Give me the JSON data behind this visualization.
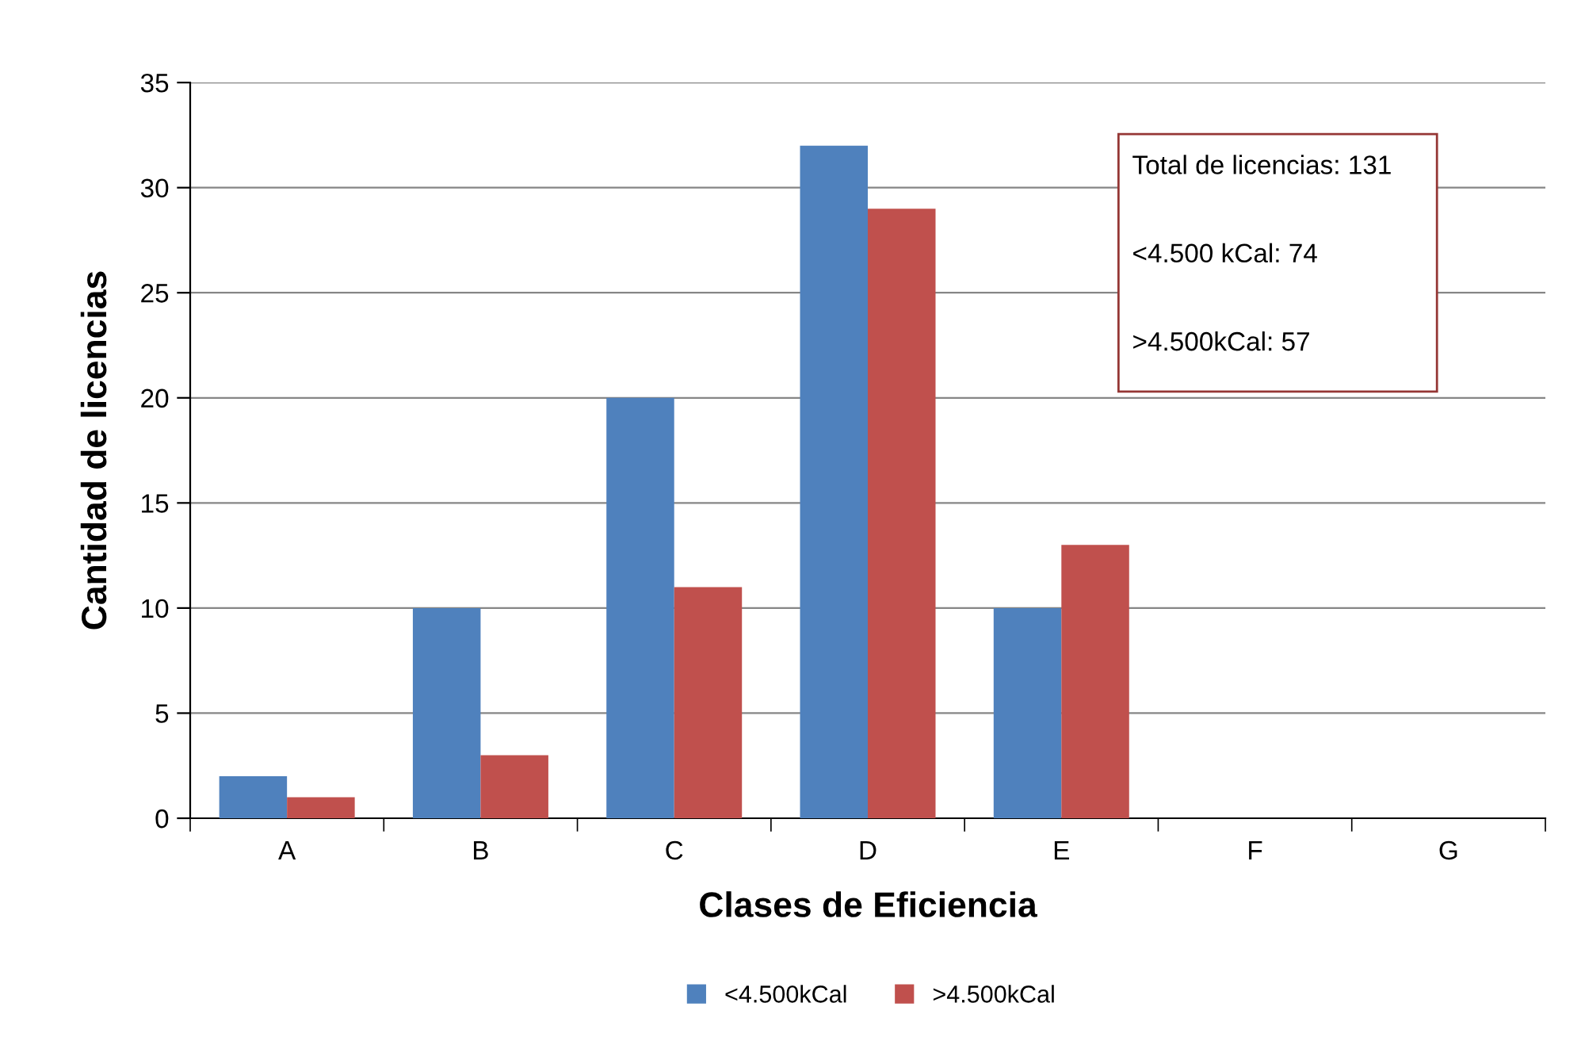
{
  "chart_data": {
    "type": "bar",
    "xlabel": "Clases de Eficiencia",
    "ylabel": "Cantidad de licencias",
    "categories": [
      "A",
      "B",
      "C",
      "D",
      "E",
      "F",
      "G"
    ],
    "series": [
      {
        "name": "<4.500kCal",
        "color": "#4f81bd",
        "values": [
          2,
          10,
          20,
          32,
          10,
          0,
          0
        ]
      },
      {
        "name": ">4.500kCal",
        "color": "#c0504d",
        "values": [
          1,
          3,
          11,
          29,
          13,
          0,
          0
        ]
      }
    ],
    "ylim": [
      0,
      35
    ],
    "yticks": [
      0,
      5,
      10,
      15,
      20,
      25,
      30,
      35
    ],
    "grid": "y",
    "legend": "bottom",
    "annotations": [
      "Total de licencias: 131",
      "<4.500 kCal: 74",
      ">4.500kCal: 57"
    ]
  }
}
